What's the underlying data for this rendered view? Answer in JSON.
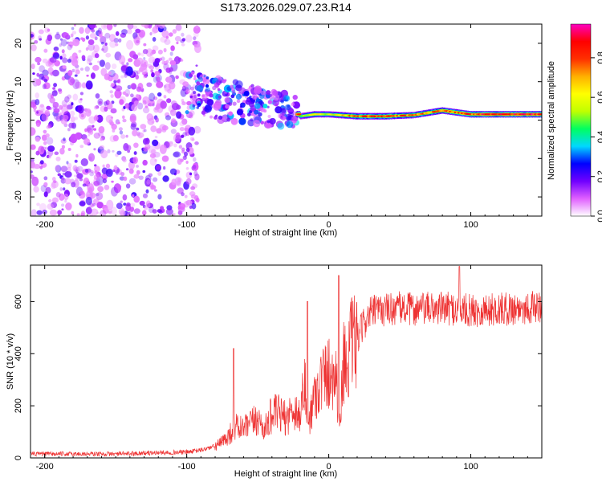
{
  "figure": {
    "title": "S173.2026.029.07.23.R14"
  },
  "chart_data": [
    {
      "type": "heatmap",
      "name": "spectrogram",
      "xlabel": "Height of straight line (km)",
      "ylabel": "Frequency (Hz)",
      "xlim": [
        -210,
        150
      ],
      "ylim": [
        -25,
        25
      ],
      "xticks": [
        -200,
        -100,
        0,
        100
      ],
      "yticks": [
        -20,
        -10,
        0,
        10,
        20
      ],
      "colorbar": {
        "label": "Normalized spectral amplitude",
        "range": [
          0,
          0.97
        ],
        "ticks": [
          0.0,
          0.2,
          0.4,
          0.6,
          0.8
        ],
        "tick_labels": [
          "0.0",
          "0.2",
          "0.4",
          "0.6",
          "0.8"
        ],
        "colors": [
          "#ffffff",
          "#e060ff",
          "#7000ff",
          "#0000ff",
          "#00d8ff",
          "#00ff60",
          "#c0ff00",
          "#ffff00",
          "#ffb000",
          "#ff3000",
          "#ff0000",
          "#ff00c0"
        ]
      },
      "regions": [
        {
          "x": [
            -210,
            -93
          ],
          "description_value": 0.12,
          "kind": "noise"
        },
        {
          "x": [
            -100,
            -22
          ],
          "kind": "scattered_signal",
          "freq_center": [
            8,
            2
          ]
        },
        {
          "x": [
            -22,
            150
          ],
          "kind": "carrier",
          "freq": 1.5,
          "amplitude": 0.85
        }
      ],
      "carrier_points": [
        {
          "x": -20,
          "f": 1.0,
          "a": 0.55
        },
        {
          "x": -10,
          "f": 1.5,
          "a": 0.7
        },
        {
          "x": 0,
          "f": 1.5,
          "a": 0.6
        },
        {
          "x": 20,
          "f": 1.0,
          "a": 0.85
        },
        {
          "x": 40,
          "f": 1.0,
          "a": 0.9
        },
        {
          "x": 60,
          "f": 1.3,
          "a": 0.8
        },
        {
          "x": 80,
          "f": 2.5,
          "a": 0.85
        },
        {
          "x": 100,
          "f": 1.5,
          "a": 0.9
        },
        {
          "x": 120,
          "f": 1.5,
          "a": 0.95
        },
        {
          "x": 150,
          "f": 1.5,
          "a": 0.95
        }
      ]
    },
    {
      "type": "line",
      "name": "snr",
      "xlabel": "Height of straight line (km)",
      "ylabel": "SNR (10 * v/v)",
      "xlim": [
        -210,
        150
      ],
      "ylim": [
        0,
        740
      ],
      "xticks": [
        -200,
        -100,
        0,
        100
      ],
      "yticks": [
        0,
        200,
        400,
        600
      ],
      "color": "#ee3333",
      "series": [
        {
          "name": "SNR",
          "x": [
            -210,
            -180,
            -150,
            -120,
            -100,
            -90,
            -80,
            -75,
            -70,
            -65,
            -60,
            -55,
            -50,
            -45,
            -40,
            -35,
            -30,
            -25,
            -20,
            -17,
            -15,
            -10,
            -5,
            0,
            5,
            8,
            10,
            12,
            15,
            20,
            25,
            30,
            40,
            50,
            60,
            80,
            100,
            120,
            150
          ],
          "y": [
            15,
            15,
            15,
            20,
            22,
            30,
            45,
            60,
            90,
            120,
            110,
            130,
            150,
            110,
            170,
            170,
            150,
            190,
            160,
            300,
            120,
            240,
            300,
            330,
            320,
            120,
            380,
            360,
            420,
            450,
            520,
            560,
            570,
            575,
            570,
            575,
            565,
            570,
            580
          ]
        }
      ],
      "peaks": [
        {
          "x": -67,
          "y": 420
        },
        {
          "x": -15,
          "y": 600
        },
        {
          "x": 7,
          "y": 700
        },
        {
          "x": 92,
          "y": 735
        }
      ]
    }
  ]
}
